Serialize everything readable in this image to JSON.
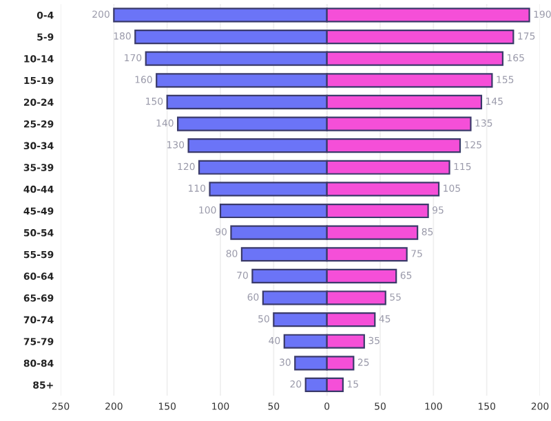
{
  "chart_data": {
    "type": "bar",
    "orientation": "horizontal",
    "categories": [
      "0-4",
      "5-9",
      "10-14",
      "15-19",
      "20-24",
      "25-29",
      "30-34",
      "35-39",
      "40-44",
      "45-49",
      "50-54",
      "55-59",
      "60-64",
      "65-69",
      "70-74",
      "75-79",
      "80-84",
      "85+"
    ],
    "series": [
      {
        "color": "#6b74f7",
        "values": [
          200,
          180,
          170,
          160,
          150,
          140,
          130,
          120,
          110,
          100,
          90,
          80,
          70,
          60,
          50,
          40,
          30,
          20
        ],
        "base": [
          -200,
          -180,
          -170,
          -160,
          -150,
          -140,
          -130,
          -120,
          -110,
          -100,
          -90,
          -80,
          -70,
          -60,
          -50,
          -40,
          -30,
          -20
        ]
      },
      {
        "color": "#f54fd8",
        "values": [
          190,
          175,
          165,
          155,
          145,
          135,
          125,
          115,
          105,
          95,
          85,
          75,
          65,
          55,
          45,
          35,
          25,
          15
        ]
      }
    ],
    "data_labels": true,
    "xlim": [
      -250,
      200
    ],
    "xticks": [
      {
        "value": -250,
        "label": "250"
      },
      {
        "value": -200,
        "label": "200"
      },
      {
        "value": -150,
        "label": "150"
      },
      {
        "value": -100,
        "label": "100"
      },
      {
        "value": -50,
        "label": "50"
      },
      0,
      50,
      100,
      150,
      200
    ],
    "grid": "x",
    "legend": false
  }
}
